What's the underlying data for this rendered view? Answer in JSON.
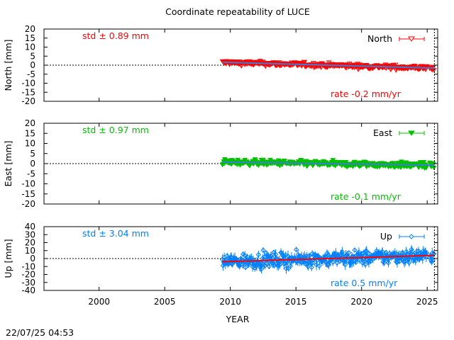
{
  "figure": {
    "title": "Coordinate repeatability of LUCE",
    "xlabel": "YEAR",
    "timestamp": "22/07/25 04:53",
    "x_ticks": [
      2000,
      2005,
      2010,
      2015,
      2020,
      2025
    ],
    "xlim": [
      1995.8,
      2025.8
    ],
    "data_start": 2009.4,
    "data_end": 2025.55,
    "marker_year": 2025.55
  },
  "chart_data": [
    {
      "type": "scatter",
      "component": "North",
      "ylabel": "North [mm]",
      "legend": "North",
      "std_text": "std ± 0.89 mm",
      "rate_text": "rate -0.2 mm/yr",
      "rate_mm_per_yr": -0.2,
      "std_mm": 0.89,
      "y_ticks": [
        20,
        15,
        10,
        5,
        0,
        -5,
        -10,
        -15,
        -20
      ],
      "ylim": [
        -20,
        20
      ],
      "color": "#ff0000",
      "trend_color": "#3b7dd8",
      "marker": "triangle-down-open"
    },
    {
      "type": "scatter",
      "component": "East",
      "ylabel": "East [mm]",
      "legend": "East",
      "std_text": "std ± 0.97 mm",
      "rate_text": "rate -0.1 mm/yr",
      "rate_mm_per_yr": -0.1,
      "std_mm": 0.97,
      "y_ticks": [
        20,
        15,
        10,
        5,
        0,
        -5,
        -10,
        -15,
        -20
      ],
      "ylim": [
        -20,
        20
      ],
      "color": "#00c000",
      "trend_color": "#3b7dd8",
      "marker": "triangle-down-filled"
    },
    {
      "type": "scatter",
      "component": "Up",
      "ylabel": "Up [mm]",
      "legend": "Up",
      "std_text": "std ± 3.04 mm",
      "rate_text": "rate  0.5 mm/yr",
      "rate_mm_per_yr": 0.5,
      "std_mm": 3.04,
      "y_ticks": [
        40,
        30,
        20,
        10,
        0,
        -10,
        -20,
        -30,
        -40
      ],
      "ylim": [
        -40,
        40
      ],
      "color": "#0080ff",
      "trend_color": "#ff0000",
      "marker": "diamond-open"
    }
  ]
}
